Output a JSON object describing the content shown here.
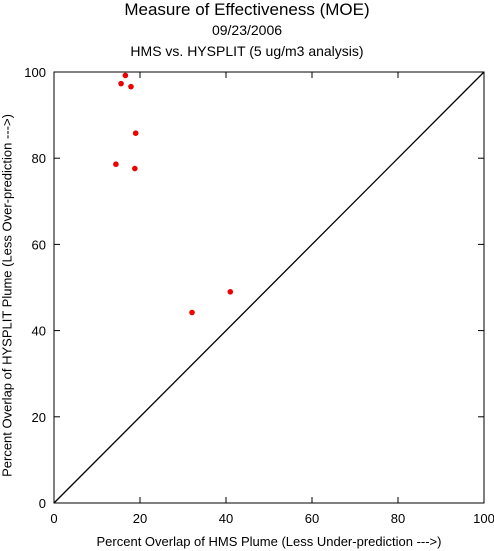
{
  "chart_data": {
    "type": "scatter",
    "title": "Measure of Effectiveness (MOE)",
    "subtitle": "09/23/2006",
    "subtitle2": "HMS vs. HYSPLIT  (5 ug/m3 analysis)",
    "xlabel": "Percent Overlap of HMS Plume (Less Under-prediction --->)",
    "ylabel": "Percent Overlap of HYSPLIT Plume (Less Over-prediction --->)",
    "xlim": [
      0,
      100
    ],
    "ylim": [
      0,
      100
    ],
    "xticks": [
      0,
      20,
      40,
      60,
      80,
      100
    ],
    "yticks": [
      0,
      20,
      40,
      60,
      80,
      100
    ],
    "grid": false,
    "reference_line": {
      "x": [
        0,
        100
      ],
      "y": [
        0,
        100
      ],
      "color": "#000000"
    },
    "point_color": "#ee0000",
    "points": [
      {
        "x": 16.6,
        "y": 99.2
      },
      {
        "x": 15.6,
        "y": 97.3
      },
      {
        "x": 17.9,
        "y": 96.6
      },
      {
        "x": 19.0,
        "y": 85.8
      },
      {
        "x": 14.4,
        "y": 78.6
      },
      {
        "x": 18.8,
        "y": 77.6
      },
      {
        "x": 41.0,
        "y": 49.0
      },
      {
        "x": 32.1,
        "y": 44.2
      }
    ]
  }
}
